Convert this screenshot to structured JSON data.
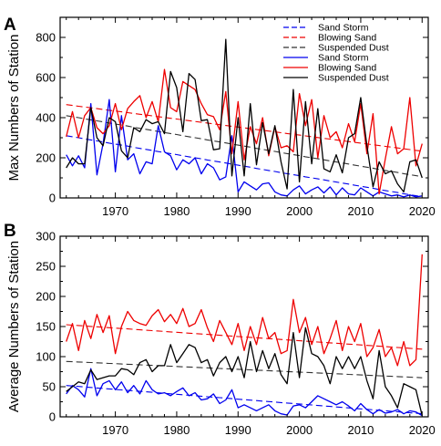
{
  "chart_data": [
    {
      "panel_label": "A",
      "type": "line",
      "ylabel": "Max Numbers of Station",
      "xlim": [
        1961,
        2021
      ],
      "ylim": [
        0,
        900
      ],
      "xticks": [
        1970,
        1980,
        1990,
        2000,
        2010,
        2020
      ],
      "yticks": [
        0,
        200,
        400,
        600,
        800
      ],
      "legend_position": "top-right",
      "x": [
        1962,
        1963,
        1964,
        1965,
        1966,
        1967,
        1968,
        1969,
        1970,
        1971,
        1972,
        1973,
        1974,
        1975,
        1976,
        1977,
        1978,
        1979,
        1980,
        1981,
        1982,
        1983,
        1984,
        1985,
        1986,
        1987,
        1988,
        1989,
        1990,
        1991,
        1992,
        1993,
        1994,
        1995,
        1996,
        1997,
        1998,
        1999,
        2000,
        2001,
        2002,
        2003,
        2004,
        2005,
        2006,
        2007,
        2008,
        2009,
        2010,
        2011,
        2012,
        2013,
        2014,
        2015,
        2016,
        2017,
        2018,
        2019,
        2020
      ],
      "series": [
        {
          "name": "Sand Storm",
          "style": "dashed",
          "color": "#0000ee",
          "values": [
            310,
            305,
            300,
            294,
            289,
            284,
            279,
            273,
            268,
            263,
            258,
            252,
            247,
            242,
            237,
            231,
            226,
            221,
            216,
            210,
            205,
            200,
            195,
            189,
            184,
            179,
            174,
            168,
            163,
            158,
            153,
            147,
            142,
            137,
            132,
            126,
            121,
            116,
            111,
            105,
            100,
            95,
            90,
            84,
            79,
            74,
            69,
            63,
            58,
            53,
            48,
            42,
            37,
            32,
            27,
            21,
            16,
            11,
            6
          ]
        },
        {
          "name": "Blowing Sand",
          "style": "dashed",
          "color": "#ee0000",
          "values": [
            465,
            461,
            457,
            453,
            449,
            445,
            441,
            437,
            433,
            429,
            425,
            421,
            417,
            413,
            409,
            405,
            401,
            397,
            393,
            389,
            385,
            381,
            377,
            373,
            369,
            365,
            361,
            357,
            353,
            349,
            345,
            341,
            337,
            333,
            329,
            325,
            321,
            317,
            313,
            309,
            305,
            301,
            297,
            293,
            289,
            285,
            281,
            277,
            273,
            269,
            265,
            261,
            257,
            253,
            249,
            245,
            241,
            237,
            233
          ]
        },
        {
          "name": "Suspended Dust",
          "style": "dashed",
          "color": "#333333",
          "values": [
            410,
            405,
            400,
            394,
            389,
            384,
            379,
            373,
            368,
            363,
            358,
            352,
            347,
            342,
            337,
            331,
            326,
            321,
            316,
            310,
            305,
            300,
            295,
            289,
            284,
            279,
            274,
            268,
            263,
            258,
            253,
            247,
            242,
            237,
            232,
            226,
            221,
            216,
            211,
            205,
            200,
            195,
            190,
            184,
            179,
            174,
            169,
            163,
            158,
            153,
            148,
            142,
            137,
            132,
            127,
            121,
            116,
            111,
            106
          ]
        },
        {
          "name": "Sand Storm",
          "style": "solid",
          "color": "#0000ee",
          "values": [
            215,
            160,
            210,
            150,
            470,
            115,
            270,
            490,
            130,
            410,
            190,
            220,
            120,
            180,
            170,
            360,
            230,
            210,
            140,
            190,
            170,
            200,
            120,
            170,
            150,
            90,
            105,
            310,
            30,
            80,
            60,
            40,
            70,
            75,
            30,
            15,
            10,
            40,
            60,
            20,
            40,
            55,
            25,
            55,
            15,
            50,
            20,
            15,
            50,
            30,
            10,
            30,
            20,
            10,
            15,
            5,
            15,
            5,
            10
          ]
        },
        {
          "name": "Blowing Sand",
          "style": "solid",
          "color": "#ee0000",
          "values": [
            305,
            430,
            300,
            410,
            450,
            350,
            320,
            360,
            470,
            340,
            445,
            480,
            510,
            400,
            480,
            380,
            640,
            450,
            430,
            580,
            560,
            540,
            470,
            415,
            405,
            340,
            530,
            220,
            480,
            190,
            355,
            270,
            400,
            210,
            355,
            250,
            260,
            230,
            520,
            360,
            490,
            200,
            410,
            300,
            330,
            250,
            370,
            280,
            470,
            220,
            420,
            20,
            195,
            355,
            220,
            245,
            500,
            160,
            270
          ]
        },
        {
          "name": "Suspended Dust",
          "style": "solid",
          "color": "#000000",
          "values": [
            150,
            200,
            170,
            170,
            450,
            300,
            260,
            400,
            380,
            235,
            200,
            350,
            330,
            390,
            370,
            380,
            320,
            630,
            550,
            330,
            620,
            590,
            385,
            390,
            240,
            245,
            790,
            110,
            400,
            110,
            470,
            165,
            375,
            220,
            360,
            180,
            45,
            540,
            80,
            480,
            170,
            445,
            145,
            130,
            215,
            125,
            300,
            320,
            500,
            260,
            55,
            180,
            120,
            135,
            70,
            30,
            180,
            190,
            100
          ]
        }
      ]
    },
    {
      "panel_label": "B",
      "type": "line",
      "ylabel": "Average Numbers of Station",
      "xlim": [
        1961,
        2021
      ],
      "ylim": [
        0,
        300
      ],
      "xticks": [
        1970,
        1980,
        1990,
        2000,
        2010,
        2020
      ],
      "yticks": [
        0,
        50,
        100,
        150,
        200,
        250,
        300
      ],
      "x": [
        1962,
        1963,
        1964,
        1965,
        1966,
        1967,
        1968,
        1969,
        1970,
        1971,
        1972,
        1973,
        1974,
        1975,
        1976,
        1977,
        1978,
        1979,
        1980,
        1981,
        1982,
        1983,
        1984,
        1985,
        1986,
        1987,
        1988,
        1989,
        1990,
        1991,
        1992,
        1993,
        1994,
        1995,
        1996,
        1997,
        1998,
        1999,
        2000,
        2001,
        2002,
        2003,
        2004,
        2005,
        2006,
        2007,
        2008,
        2009,
        2010,
        2011,
        2012,
        2013,
        2014,
        2015,
        2016,
        2017,
        2018,
        2019,
        2020
      ],
      "series": [
        {
          "name": "Sand Storm",
          "style": "dashed",
          "color": "#0000ee",
          "values": [
            52.0,
            51.2,
            50.4,
            49.6,
            48.8,
            47.9,
            47.1,
            46.3,
            45.5,
            44.7,
            43.9,
            43.1,
            42.3,
            41.5,
            40.7,
            39.9,
            39.1,
            38.2,
            37.4,
            36.6,
            35.8,
            35.0,
            34.2,
            33.4,
            32.6,
            31.8,
            31.0,
            30.2,
            29.3,
            28.5,
            27.7,
            26.9,
            26.1,
            25.3,
            24.5,
            23.7,
            22.9,
            22.1,
            21.3,
            20.5,
            19.7,
            18.8,
            18.0,
            17.2,
            16.4,
            15.6,
            14.8,
            14.0,
            13.2,
            12.4,
            11.6,
            10.8,
            10.0,
            9.1,
            8.3,
            7.5,
            6.7,
            5.9,
            5.1
          ]
        },
        {
          "name": "Blowing Sand",
          "style": "dashed",
          "color": "#ee0000",
          "values": [
            153,
            152.3,
            151.6,
            150.9,
            150.2,
            149.5,
            148.8,
            148.1,
            147.4,
            146.7,
            146,
            145.3,
            144.6,
            143.9,
            143.2,
            142.5,
            141.8,
            141.1,
            140.4,
            139.7,
            139,
            138.3,
            137.6,
            136.9,
            136.2,
            135.5,
            134.8,
            134.1,
            133.4,
            132.7,
            132,
            131.3,
            130.6,
            129.9,
            129.2,
            128.5,
            127.8,
            127.1,
            126.4,
            125.7,
            125,
            124.3,
            123.6,
            122.9,
            122.2,
            121.5,
            120.8,
            120.1,
            119.4,
            118.7,
            118,
            117.3,
            116.6,
            115.9,
            115.2,
            114.5,
            113.8,
            113.1,
            112.4
          ]
        },
        {
          "name": "Suspended Dust",
          "style": "dashed",
          "color": "#333333",
          "values": [
            92,
            91.5,
            91.1,
            90.6,
            90.1,
            89.7,
            89.2,
            88.7,
            88.3,
            87.8,
            87.3,
            86.9,
            86.4,
            85.9,
            85.5,
            85,
            84.5,
            84.1,
            83.6,
            83.1,
            82.7,
            82.2,
            81.7,
            81.3,
            80.8,
            80.3,
            79.9,
            79.4,
            78.9,
            78.5,
            78,
            77.5,
            77.1,
            76.6,
            76.1,
            75.7,
            75.2,
            74.7,
            74.3,
            73.8,
            73.3,
            72.9,
            72.4,
            71.9,
            71.5,
            71,
            70.5,
            70.1,
            69.6,
            69.1,
            68.7,
            68.2,
            67.7,
            67.3,
            66.8,
            66.3,
            65.9,
            65.4,
            64.9
          ]
        },
        {
          "name": "Sand Storm",
          "style": "solid",
          "color": "#0000ee",
          "values": [
            38,
            52,
            45,
            33,
            80,
            35,
            55,
            60,
            45,
            58,
            40,
            52,
            38,
            60,
            45,
            38,
            40,
            35,
            42,
            48,
            35,
            40,
            28,
            30,
            38,
            22,
            28,
            45,
            15,
            20,
            15,
            10,
            15,
            20,
            10,
            5,
            3,
            18,
            20,
            15,
            25,
            35,
            30,
            25,
            20,
            25,
            18,
            10,
            22,
            12,
            5,
            12,
            6,
            8,
            12,
            5,
            10,
            8,
            2
          ]
        },
        {
          "name": "Blowing Sand",
          "style": "solid",
          "color": "#ee0000",
          "values": [
            125,
            155,
            110,
            160,
            130,
            170,
            140,
            168,
            105,
            150,
            175,
            160,
            155,
            152,
            168,
            178,
            158,
            170,
            155,
            180,
            150,
            155,
            178,
            148,
            125,
            160,
            140,
            120,
            155,
            110,
            150,
            120,
            165,
            130,
            140,
            105,
            110,
            195,
            140,
            165,
            120,
            150,
            105,
            130,
            160,
            110,
            150,
            125,
            155,
            100,
            115,
            145,
            100,
            115,
            85,
            125,
            85,
            95,
            270
          ]
        },
        {
          "name": "Suspended Dust",
          "style": "solid",
          "color": "#000000",
          "values": [
            42,
            50,
            58,
            55,
            78,
            62,
            65,
            68,
            68,
            80,
            78,
            70,
            90,
            95,
            75,
            85,
            85,
            120,
            90,
            105,
            120,
            115,
            90,
            95,
            68,
            90,
            100,
            75,
            100,
            65,
            125,
            75,
            110,
            80,
            105,
            70,
            55,
            140,
            65,
            148,
            105,
            100,
            85,
            55,
            100,
            80,
            100,
            80,
            100,
            60,
            30,
            110,
            50,
            35,
            15,
            55,
            50,
            45,
            2
          ]
        }
      ]
    }
  ]
}
